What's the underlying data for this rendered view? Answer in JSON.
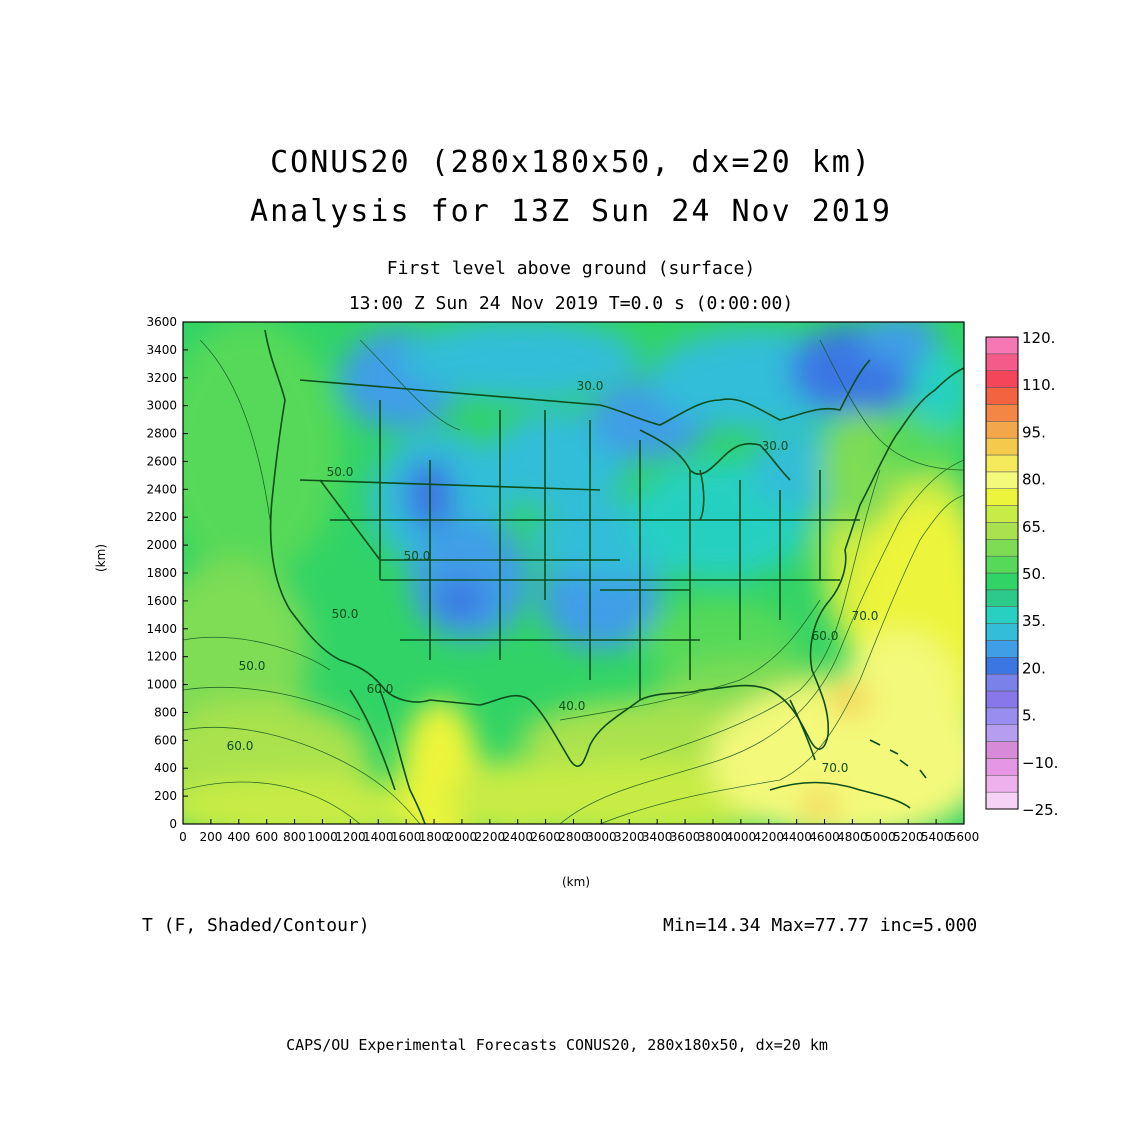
{
  "titles": {
    "line1": "CONUS20 (280x180x50, dx=20 km)",
    "line2": "Analysis for 13Z Sun 24 Nov 2019",
    "sub1": "First level above ground (surface)",
    "sub2": "13:00 Z Sun 24 Nov 2019   T=0.0 s (0:00:00)"
  },
  "field_label": "T (F, Shaded/Contour)",
  "stats": "Min=14.34 Max=77.77 inc=5.000",
  "footer": "CAPS/OU Experimental Forecasts  CONUS20, 280x180x50, dx=20 km",
  "axes": {
    "x_label": "(km)",
    "y_label": "(km)",
    "x_ticks": [
      "0",
      "200",
      "400",
      "600",
      "800",
      "1000",
      "1200",
      "1400",
      "1600",
      "1800",
      "2000",
      "2200",
      "2400",
      "2600",
      "2800",
      "3000",
      "3200",
      "3400",
      "3600",
      "3800",
      "4000",
      "4200",
      "4400",
      "4600",
      "4800",
      "5000",
      "5200",
      "5400",
      "5600"
    ],
    "y_ticks": [
      "0",
      "200",
      "400",
      "600",
      "800",
      "1000",
      "1200",
      "1400",
      "1600",
      "1800",
      "2000",
      "2200",
      "2400",
      "2600",
      "2800",
      "3000",
      "3200",
      "3400",
      "3600"
    ],
    "x_range": [
      0,
      5600
    ],
    "y_range": [
      0,
      3600
    ]
  },
  "colorbar": {
    "colors": [
      "#f7d2f7",
      "#eeb1ee",
      "#e597e5",
      "#d78ad7",
      "#b59ef0",
      "#9a8df0",
      "#8777ea",
      "#7a82ea",
      "#3b76e3",
      "#3f9ee6",
      "#33bdd8",
      "#27d0c1",
      "#2dc98b",
      "#31d366",
      "#56d959",
      "#7edc54",
      "#a9e24e",
      "#c7ec45",
      "#ecf43b",
      "#f3f97a",
      "#f4ea5c",
      "#f4ca4c",
      "#f4a64a",
      "#f48645",
      "#f4633f",
      "#f4455a",
      "#f45a8a",
      "#f578b5"
    ],
    "labels": [
      "120.",
      "110.",
      "95.",
      "80.",
      "65.",
      "50.",
      "35.",
      "20.",
      "5.",
      "−10.",
      "−25."
    ]
  },
  "contour_labels": [
    "50.0",
    "50.0",
    "50.0",
    "60.0",
    "40.0",
    "50.0",
    "30.0",
    "60.0",
    "70.0",
    "70.0",
    "60.0",
    "30.0"
  ],
  "colors": {
    "boundaries": "#0c4d1a",
    "cold": "#3b76e3",
    "warm": "#f3f97a"
  }
}
